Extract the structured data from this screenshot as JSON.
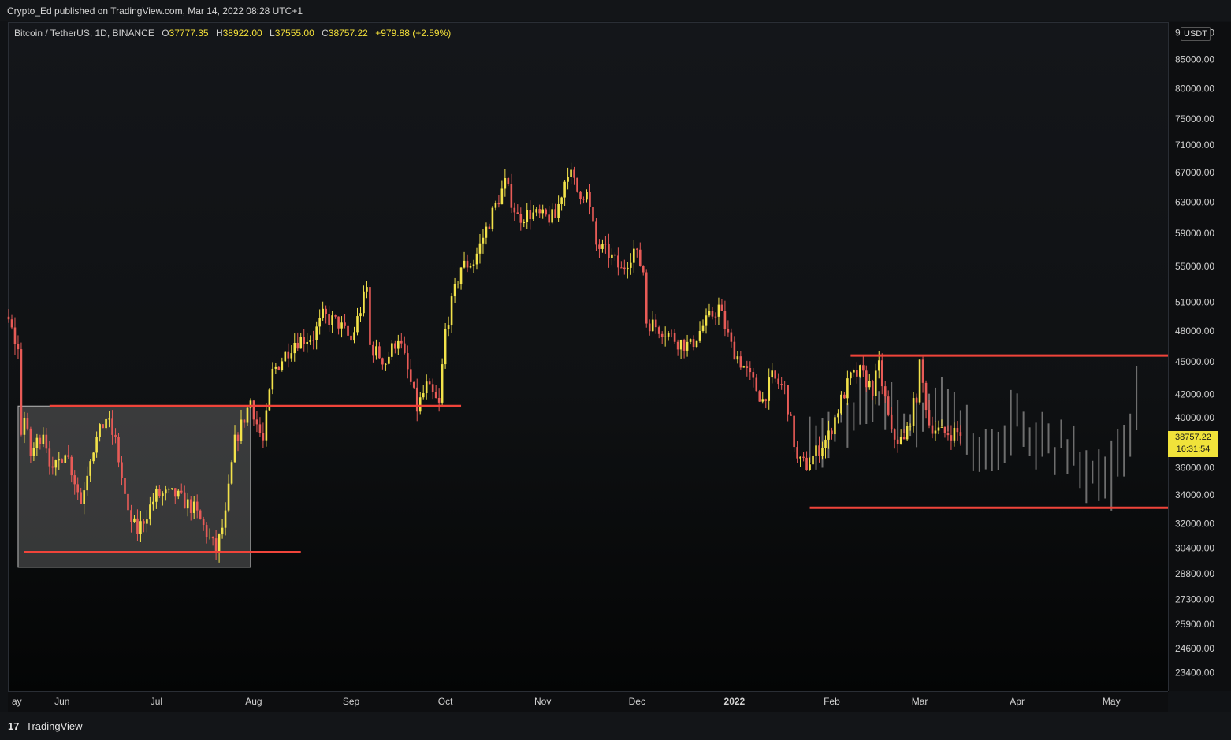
{
  "header": {
    "publish_text": "Crypto_Ed published on TradingView.com, Mar 14, 2022 08:28 UTC+1"
  },
  "legend": {
    "symbol": "Bitcoin / TetherUS, 1D, BINANCE",
    "o_label": "O",
    "o_value": "37777.35",
    "h_label": "H",
    "h_value": "38922.00",
    "l_label": "L",
    "l_value": "37555.00",
    "c_label": "C",
    "c_value": "38757.22",
    "change": "+979.88 (+2.59%)"
  },
  "price_axis": {
    "currency": "USDT",
    "top_label": "90000.00",
    "current_price": "38757.22",
    "countdown": "16:31:54"
  },
  "footer": {
    "brand": "TradingView",
    "logo_text": "17"
  },
  "colors": {
    "up_candle": "#f2e24a",
    "down_candle": "#e85b57",
    "projection": "#6e6e6e",
    "level_line": "#f0443a",
    "box_fill": "#8c8c8c",
    "box_border": "#bbbbbb"
  },
  "chart_data": {
    "type": "candlestick",
    "scale": "log",
    "ylim": [
      22500,
      92000
    ],
    "price_ticks": [
      "85000.00",
      "80000.00",
      "75000.00",
      "71000.00",
      "67000.00",
      "63000.00",
      "59000.00",
      "55000.00",
      "51000.00",
      "48000.00",
      "45000.00",
      "42000.00",
      "40000.00",
      "36000.00",
      "34000.00",
      "32000.00",
      "30400.00",
      "28800.00",
      "27300.00",
      "25900.00",
      "24600.00",
      "23400.00"
    ],
    "time_ticks": [
      "ay",
      "Jun",
      "Jul",
      "Aug",
      "Sep",
      "Oct",
      "Nov",
      "Dec",
      "2022",
      "Feb",
      "Mar",
      "Apr",
      "May"
    ],
    "x_range": [
      "2021-05-15",
      "2022-05-19"
    ],
    "actual_period": [
      "2021-05-15",
      "2022-03-14"
    ],
    "projection_period": [
      "2022-01-25",
      "2022-05-10"
    ],
    "close_anchors": [
      [
        "2021-05-15",
        49000
      ],
      [
        "2021-05-16",
        48000
      ],
      [
        "2021-05-18",
        46000
      ],
      [
        "2021-05-19",
        39000
      ],
      [
        "2021-05-20",
        40000
      ],
      [
        "2021-05-22",
        37000
      ],
      [
        "2021-05-24",
        38000
      ],
      [
        "2021-05-26",
        39000
      ],
      [
        "2021-05-29",
        35500
      ],
      [
        "2021-06-02",
        37500
      ],
      [
        "2021-06-07",
        33500
      ],
      [
        "2021-06-10",
        37000
      ],
      [
        "2021-06-15",
        40000
      ],
      [
        "2021-06-18",
        38000
      ],
      [
        "2021-06-22",
        32500
      ],
      [
        "2021-06-25",
        31500
      ],
      [
        "2021-07-01",
        34000
      ],
      [
        "2021-07-07",
        34000
      ],
      [
        "2021-07-13",
        33000
      ],
      [
        "2021-07-20",
        30200
      ],
      [
        "2021-07-23",
        32500
      ],
      [
        "2021-07-26",
        38000
      ],
      [
        "2021-07-29",
        40000
      ],
      [
        "2021-07-31",
        41500
      ],
      [
        "2021-08-02",
        39500
      ],
      [
        "2021-08-04",
        38000
      ],
      [
        "2021-08-07",
        44000
      ],
      [
        "2021-08-14",
        47000
      ],
      [
        "2021-08-20",
        47500
      ],
      [
        "2021-08-23",
        49500
      ],
      [
        "2021-08-28",
        48800
      ],
      [
        "2021-09-01",
        47000
      ],
      [
        "2021-09-06",
        52500
      ],
      [
        "2021-09-07",
        46500
      ],
      [
        "2021-09-12",
        45000
      ],
      [
        "2021-09-16",
        47500
      ],
      [
        "2021-09-20",
        43000
      ],
      [
        "2021-09-22",
        40800
      ],
      [
        "2021-09-25",
        42700
      ],
      [
        "2021-09-29",
        41000
      ],
      [
        "2021-10-01",
        48000
      ],
      [
        "2021-10-06",
        55000
      ],
      [
        "2021-10-10",
        55500
      ],
      [
        "2021-10-15",
        60500
      ],
      [
        "2021-10-20",
        65500
      ],
      [
        "2021-10-24",
        61000
      ],
      [
        "2021-10-28",
        61500
      ],
      [
        "2021-11-01",
        61000
      ],
      [
        "2021-11-05",
        61000
      ],
      [
        "2021-11-09",
        67500
      ],
      [
        "2021-11-12",
        64500
      ],
      [
        "2021-11-15",
        64000
      ],
      [
        "2021-11-18",
        57500
      ],
      [
        "2021-11-22",
        56500
      ],
      [
        "2021-11-26",
        54500
      ],
      [
        "2021-11-30",
        57000
      ],
      [
        "2021-12-03",
        54500
      ],
      [
        "2021-12-04",
        49000
      ],
      [
        "2021-12-10",
        48000
      ],
      [
        "2021-12-14",
        47000
      ],
      [
        "2021-12-18",
        46500
      ],
      [
        "2021-12-22",
        48500
      ],
      [
        "2021-12-27",
        50500
      ],
      [
        "2021-12-31",
        46500
      ],
      [
        "2022-01-05",
        44000
      ],
      [
        "2022-01-10",
        41500
      ],
      [
        "2022-01-13",
        43500
      ],
      [
        "2022-01-17",
        42500
      ],
      [
        "2022-01-21",
        36500
      ],
      [
        "2022-01-24",
        36200
      ],
      [
        "2022-01-27",
        37200
      ],
      [
        "2022-01-31",
        38500
      ],
      [
        "2022-02-04",
        41500
      ],
      [
        "2022-02-07",
        43500
      ],
      [
        "2022-02-10",
        44000
      ],
      [
        "2022-02-14",
        42500
      ],
      [
        "2022-02-16",
        44500
      ],
      [
        "2022-02-20",
        38500
      ],
      [
        "2022-02-24",
        38000
      ],
      [
        "2022-02-28",
        42000
      ],
      [
        "2022-03-01",
        44500
      ],
      [
        "2022-03-04",
        39500
      ],
      [
        "2022-03-08",
        38700
      ],
      [
        "2022-03-11",
        38800
      ],
      [
        "2022-03-14",
        38757
      ]
    ],
    "projection_anchors": [
      [
        "2022-01-25",
        38000
      ],
      [
        "2022-02-05",
        39500
      ],
      [
        "2022-02-15",
        42500
      ],
      [
        "2022-02-25",
        39000
      ],
      [
        "2022-03-05",
        42000
      ],
      [
        "2022-03-15",
        38500
      ],
      [
        "2022-03-22",
        37000
      ],
      [
        "2022-03-30",
        39500
      ],
      [
        "2022-04-07",
        38000
      ],
      [
        "2022-04-15",
        37500
      ],
      [
        "2022-04-22",
        36000
      ],
      [
        "2022-04-28",
        34200
      ],
      [
        "2022-05-03",
        36500
      ],
      [
        "2022-05-07",
        40000
      ],
      [
        "2022-05-10",
        43500
      ]
    ],
    "levels": [
      {
        "name": "box-bottom",
        "price": 30150,
        "from": "2021-05-20",
        "to": "2021-08-16"
      },
      {
        "name": "breakout",
        "price": 41000,
        "from": "2021-05-28",
        "to": "2021-10-06"
      },
      {
        "name": "range-top",
        "price": 45600,
        "from": "2022-02-07",
        "to": "2022-05-19"
      },
      {
        "name": "range-bottom",
        "price": 33100,
        "from": "2022-01-25",
        "to": "2022-05-19"
      }
    ],
    "range_box": {
      "from": "2021-05-18",
      "to": "2021-07-31",
      "price_low": 29200,
      "price_high": 41000
    }
  }
}
